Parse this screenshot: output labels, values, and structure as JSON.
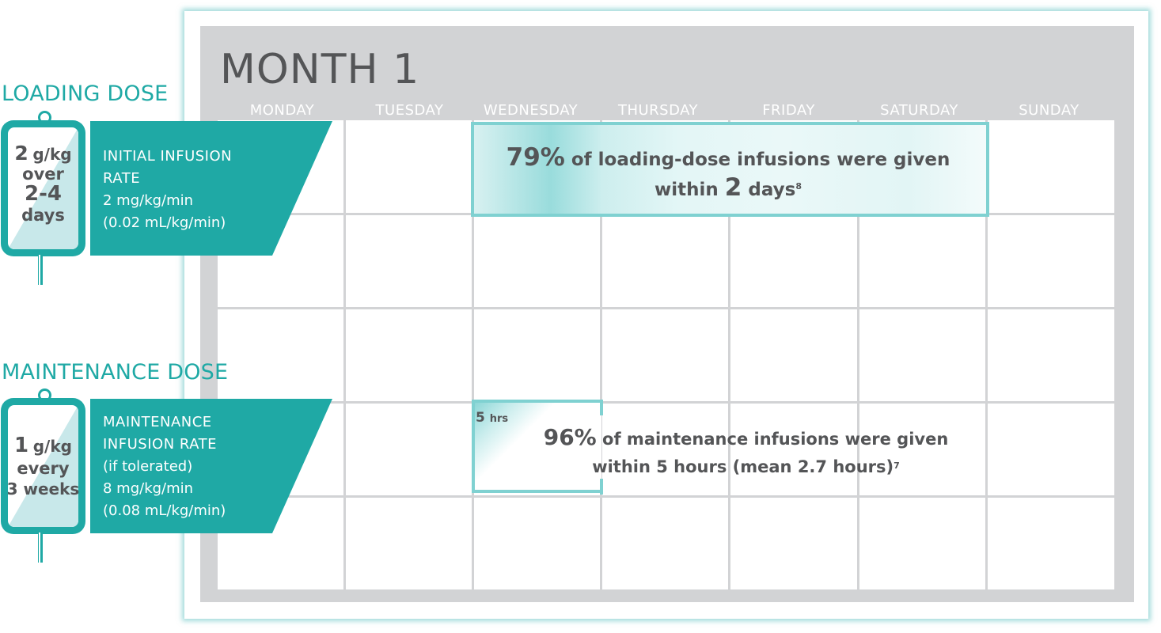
{
  "month": {
    "title": "MONTH 1"
  },
  "days": [
    "MONDAY",
    "TUESDAY",
    "WEDNESDAY",
    "THURSDAY",
    "FRIDAY",
    "SATURDAY",
    "SUNDAY"
  ],
  "loading": {
    "section_title": "LOADING DOSE",
    "bag": {
      "line1_num": "2",
      "line1_unit": "g/kg",
      "line2": "over",
      "line3": "2-4",
      "line4": "days"
    },
    "rate_heading_1": "INITIAL INFUSION",
    "rate_heading_2": "RATE",
    "rate_value": "2 mg/kg/min",
    "rate_ml": "(0.02 mL/kg/min)",
    "callout": {
      "pct": "79%",
      "text1": " of loading-dose infusions were given",
      "text2_pre": "within ",
      "text2_num": "2",
      "text2_post": " days",
      "ref": "8"
    }
  },
  "maintenance": {
    "section_title": "MAINTENANCE DOSE",
    "bag": {
      "line1_num": "1",
      "line1_unit": "g/kg",
      "line2": "every",
      "line3": "3 weeks"
    },
    "rate_heading_1": "MAINTENANCE",
    "rate_heading_2": "INFUSION RATE",
    "rate_note": "(if tolerated)",
    "rate_value": "8 mg/kg/min",
    "rate_ml": "(0.08 mL/kg/min)",
    "hrs_num": "5",
    "hrs_unit": "hrs",
    "callout": {
      "pct": "96%",
      "text1": " of maintenance infusions were given",
      "text2": "within 5 hours (mean 2.7 hours)",
      "ref": "7"
    }
  },
  "colors": {
    "teal": "#1fa9a5",
    "light_teal": "#7fd1d1",
    "gray": "#d2d3d5",
    "text": "#545557"
  }
}
